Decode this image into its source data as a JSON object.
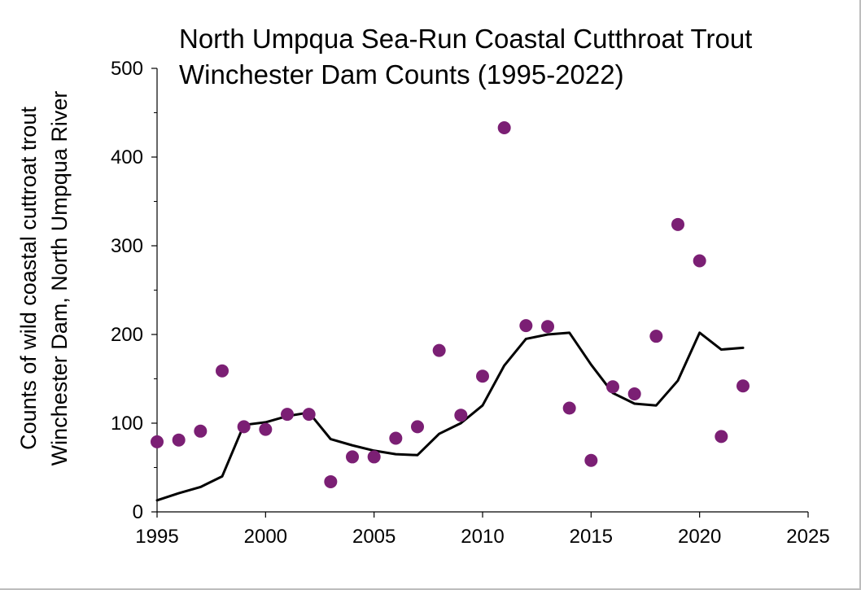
{
  "chart_data": {
    "type": "scatter",
    "title_lines": [
      "North Umpqua Sea-Run Coastal Cutthroat Trout",
      "Winchester Dam Counts (1995-2022)"
    ],
    "ylabel_lines": [
      "Counts of wild coastal cuttroat trout",
      "Winchester Dam, North Umpqua River"
    ],
    "xlabel": "",
    "xlim": [
      1995,
      2025
    ],
    "ylim": [
      0,
      500
    ],
    "x_ticks": [
      1995,
      2000,
      2005,
      2010,
      2015,
      2020,
      2025
    ],
    "y_ticks": [
      0,
      100,
      200,
      300,
      400,
      500
    ],
    "x_tick_labels": [
      "1995",
      "2000",
      "2005",
      "2010",
      "2015",
      "2020",
      "2025"
    ],
    "y_tick_labels": [
      "0",
      "100",
      "200",
      "300",
      "400",
      "500"
    ],
    "grid": false,
    "legend": "none",
    "colors": {
      "points": "#7b1f74",
      "line": "#000000",
      "axis": "#000000"
    },
    "series": [
      {
        "kind": "scatter",
        "x": [
          1995,
          1996,
          1997,
          1998,
          1999,
          2000,
          2001,
          2002,
          2003,
          2004,
          2005,
          2006,
          2007,
          2008,
          2009,
          2010,
          2011,
          2012,
          2013,
          2014,
          2015,
          2016,
          2017,
          2018,
          2019,
          2020,
          2021,
          2022
        ],
        "values": [
          79,
          81,
          91,
          159,
          96,
          93,
          110,
          110,
          34,
          62,
          62,
          83,
          96,
          182,
          109,
          153,
          433,
          210,
          209,
          117,
          58,
          141,
          133,
          198,
          324,
          283,
          85,
          142
        ]
      },
      {
        "kind": "line",
        "x": [
          1995,
          1996,
          1997,
          1998,
          1999,
          2000,
          2001,
          2002,
          2003,
          2004,
          2005,
          2006,
          2007,
          2008,
          2009,
          2010,
          2011,
          2012,
          2013,
          2014,
          2015,
          2016,
          2017,
          2018,
          2019,
          2020,
          2021,
          2022
        ],
        "values": [
          13,
          21,
          28,
          40,
          98,
          101,
          108,
          112,
          82,
          75,
          69,
          65,
          64,
          88,
          100,
          120,
          165,
          195,
          200,
          202,
          166,
          134,
          122,
          120,
          148,
          202,
          183,
          185
        ]
      }
    ]
  }
}
